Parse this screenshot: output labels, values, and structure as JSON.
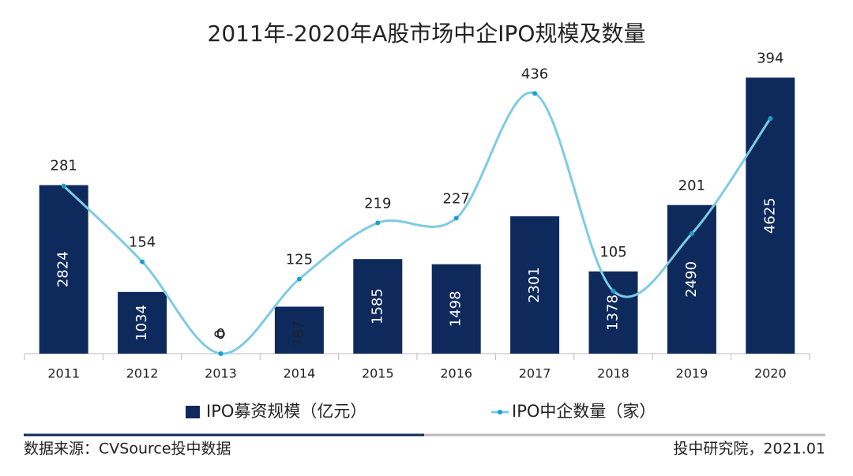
{
  "chart_data": {
    "type": "bar",
    "title": "2011年-2020年A股市场中企IPO规模及数量",
    "categories": [
      "2011",
      "2012",
      "2013",
      "2014",
      "2015",
      "2016",
      "2017",
      "2018",
      "2019",
      "2020"
    ],
    "series": [
      {
        "name": "IPO募资规模（亿元）",
        "type": "bar",
        "color": "#0e2a5c",
        "values": [
          2824,
          1034,
          0,
          787,
          1585,
          1498,
          2301,
          1378,
          2490,
          4625
        ]
      },
      {
        "name": "IPO中企数量（家）",
        "type": "line",
        "axis": "y2",
        "color": "#7ecbe3",
        "values": [
          281,
          154,
          0,
          125,
          219,
          227,
          436,
          105,
          201,
          394
        ]
      }
    ],
    "ylim": [
      0,
      5000
    ],
    "y2lim": [
      0,
      500
    ],
    "legend": "bottom",
    "source": "数据来源：CVSource投中数据",
    "credit": "投中研究院，2021.01"
  }
}
